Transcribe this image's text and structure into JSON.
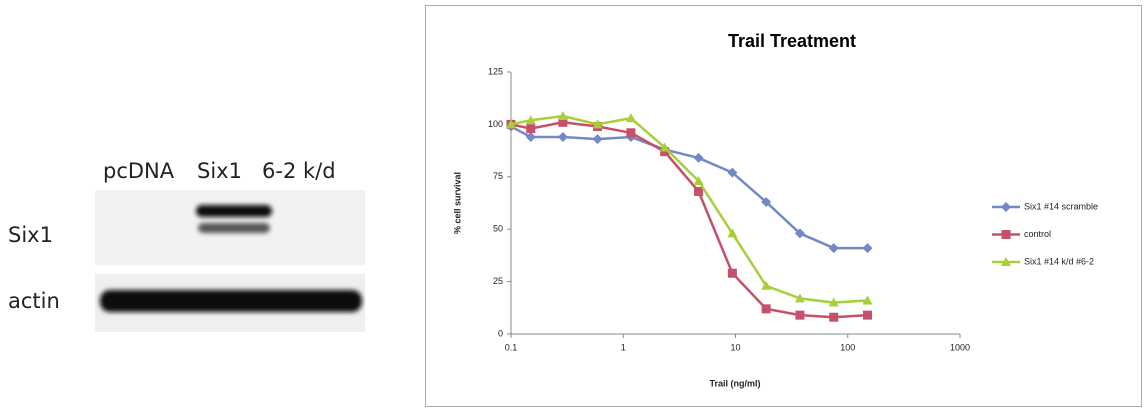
{
  "blot": {
    "lanes": [
      "pcDNA",
      "Six1",
      "6-2 k/d"
    ],
    "rows": [
      "Six1",
      "actin"
    ]
  },
  "chart_data": {
    "type": "line",
    "title": "Trail Treatment",
    "x_label": "Trail (ng/ml)",
    "y_label": "% cell survival",
    "x": [
      0.1,
      0.15,
      0.29,
      0.59,
      1.17,
      2.34,
      4.69,
      9.38,
      18.75,
      37.5,
      75,
      150
    ],
    "series": [
      {
        "name": "Six1 #14 scramble",
        "color": "#7289c5",
        "marker": "diamond",
        "values": [
          99,
          94,
          94,
          93,
          94,
          88,
          84,
          77,
          63,
          48,
          41,
          41
        ]
      },
      {
        "name": "control",
        "color": "#c6506b",
        "marker": "square",
        "values": [
          100,
          98,
          101,
          99,
          96,
          87,
          68,
          29,
          12,
          9,
          8,
          9
        ]
      },
      {
        "name": "Six1 #14 k/d #6-2",
        "color": "#a8cf3a",
        "marker": "triangle",
        "values": [
          100,
          102,
          104,
          100,
          103,
          89,
          73,
          48,
          23,
          17,
          15,
          16
        ]
      }
    ],
    "xlim": [
      0.1,
      1000
    ],
    "xticks": [
      0.1,
      1,
      10,
      100,
      1000
    ],
    "xscale": "log",
    "ylim": [
      0,
      125
    ],
    "yticks": [
      0,
      25,
      50,
      75,
      100,
      125
    ],
    "grid": false,
    "legend": "right"
  }
}
